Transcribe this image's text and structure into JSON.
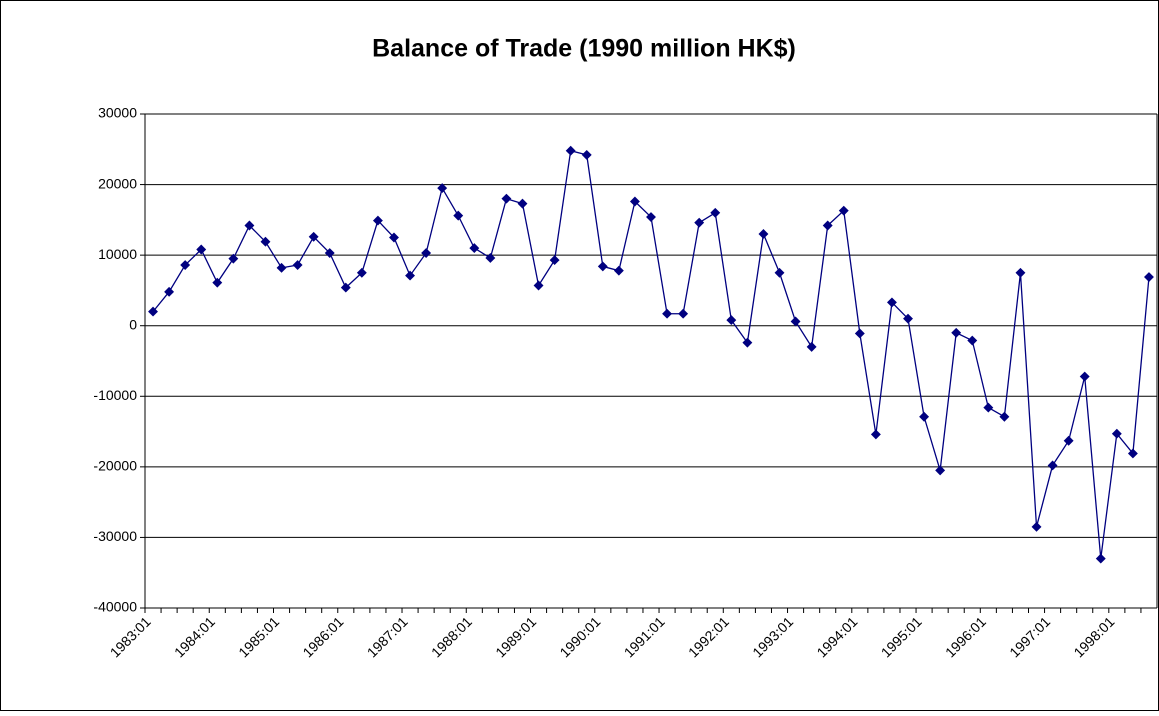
{
  "chart_data": {
    "type": "line",
    "title": "Balance of Trade (1990 million HK$)",
    "categories": [
      "1983:01",
      null,
      null,
      null,
      "1984:01",
      null,
      null,
      null,
      "1985:01",
      null,
      null,
      null,
      "1986:01",
      null,
      null,
      null,
      "1987:01",
      null,
      null,
      null,
      "1988:01",
      null,
      null,
      null,
      "1989:01",
      null,
      null,
      null,
      "1990:01",
      null,
      null,
      null,
      "1991:01",
      null,
      null,
      null,
      "1992:01",
      null,
      null,
      null,
      "1993:01",
      null,
      null,
      null,
      "1994:01",
      null,
      null,
      null,
      "1995:01",
      null,
      null,
      null,
      "1996:01",
      null,
      null,
      null,
      "1997:01",
      null,
      null,
      null,
      "1998:01",
      null,
      null
    ],
    "series": [
      {
        "color": "#000080",
        "values": [
          2000,
          4800,
          8600,
          10800,
          6100,
          9500,
          14200,
          11900,
          8200,
          8600,
          12600,
          10300,
          5400,
          7500,
          14900,
          12500,
          7100,
          10300,
          19500,
          15600,
          11000,
          9600,
          18000,
          17300,
          5700,
          9300,
          24800,
          24200,
          8400,
          7800,
          17600,
          15400,
          1700,
          1700,
          14600,
          16000,
          800,
          -2400,
          13000,
          7500,
          600,
          -3000,
          14200,
          16300,
          -1100,
          -15400,
          3300,
          1000,
          -12900,
          -20500,
          -1000,
          -2100,
          -11600,
          -12900,
          7500,
          -28500,
          -19800,
          -16300,
          -7200,
          -33000,
          -15300,
          -18100,
          6900
        ]
      }
    ],
    "ylim": [
      -40000,
      30000
    ],
    "yticks": [
      -40000,
      -30000,
      -20000,
      -10000,
      0,
      10000,
      20000,
      30000
    ],
    "grid": true
  }
}
